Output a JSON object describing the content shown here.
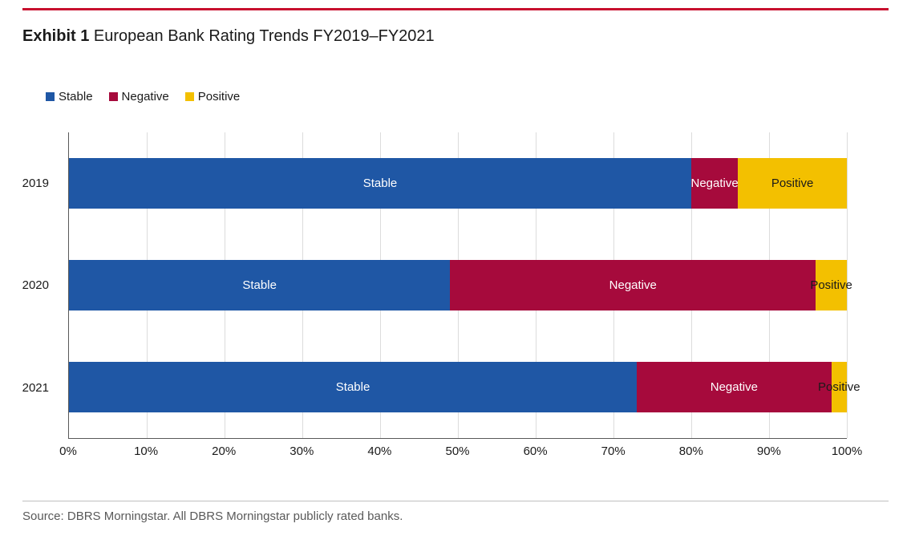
{
  "title": {
    "exhibit": "Exhibit 1",
    "text": "European Bank Rating Trends FY2019–FY2021"
  },
  "legend": {
    "items": [
      {
        "label": "Stable",
        "color": "#1F57A5"
      },
      {
        "label": "Negative",
        "color": "#A60A3C"
      },
      {
        "label": "Positive",
        "color": "#F3C000"
      }
    ]
  },
  "chart_data": {
    "type": "bar",
    "orientation": "horizontal",
    "stacked": true,
    "stack_mode": "percent",
    "title": "Exhibit 1 European Bank Rating Trends FY2019–FY2021",
    "categories": [
      "2019",
      "2020",
      "2021"
    ],
    "series": [
      {
        "name": "Stable",
        "color": "#1F57A5",
        "label_color": "#FFFFFF",
        "values": [
          80,
          49,
          73
        ]
      },
      {
        "name": "Negative",
        "color": "#A60A3C",
        "label_color": "#FFFFFF",
        "values": [
          6,
          47,
          25
        ]
      },
      {
        "name": "Positive",
        "color": "#F3C000",
        "label_color": "#1A1A1A",
        "values": [
          14,
          4,
          2
        ]
      }
    ],
    "x_ticks": [
      "0%",
      "10%",
      "20%",
      "30%",
      "40%",
      "50%",
      "60%",
      "70%",
      "80%",
      "90%",
      "100%"
    ],
    "xlim": [
      0,
      100
    ],
    "xlabel": "",
    "ylabel": "",
    "grid": "vertical",
    "legend_position": "top",
    "segment_labels": true
  },
  "source": "Source: DBRS Morningstar. All DBRS Morningstar publicly rated banks.",
  "colors": {
    "top_rule": "#C8102E",
    "gridline": "#DCDCDC",
    "axis": "#595959",
    "divider": "#BFBFBF",
    "source_text": "#595959"
  }
}
